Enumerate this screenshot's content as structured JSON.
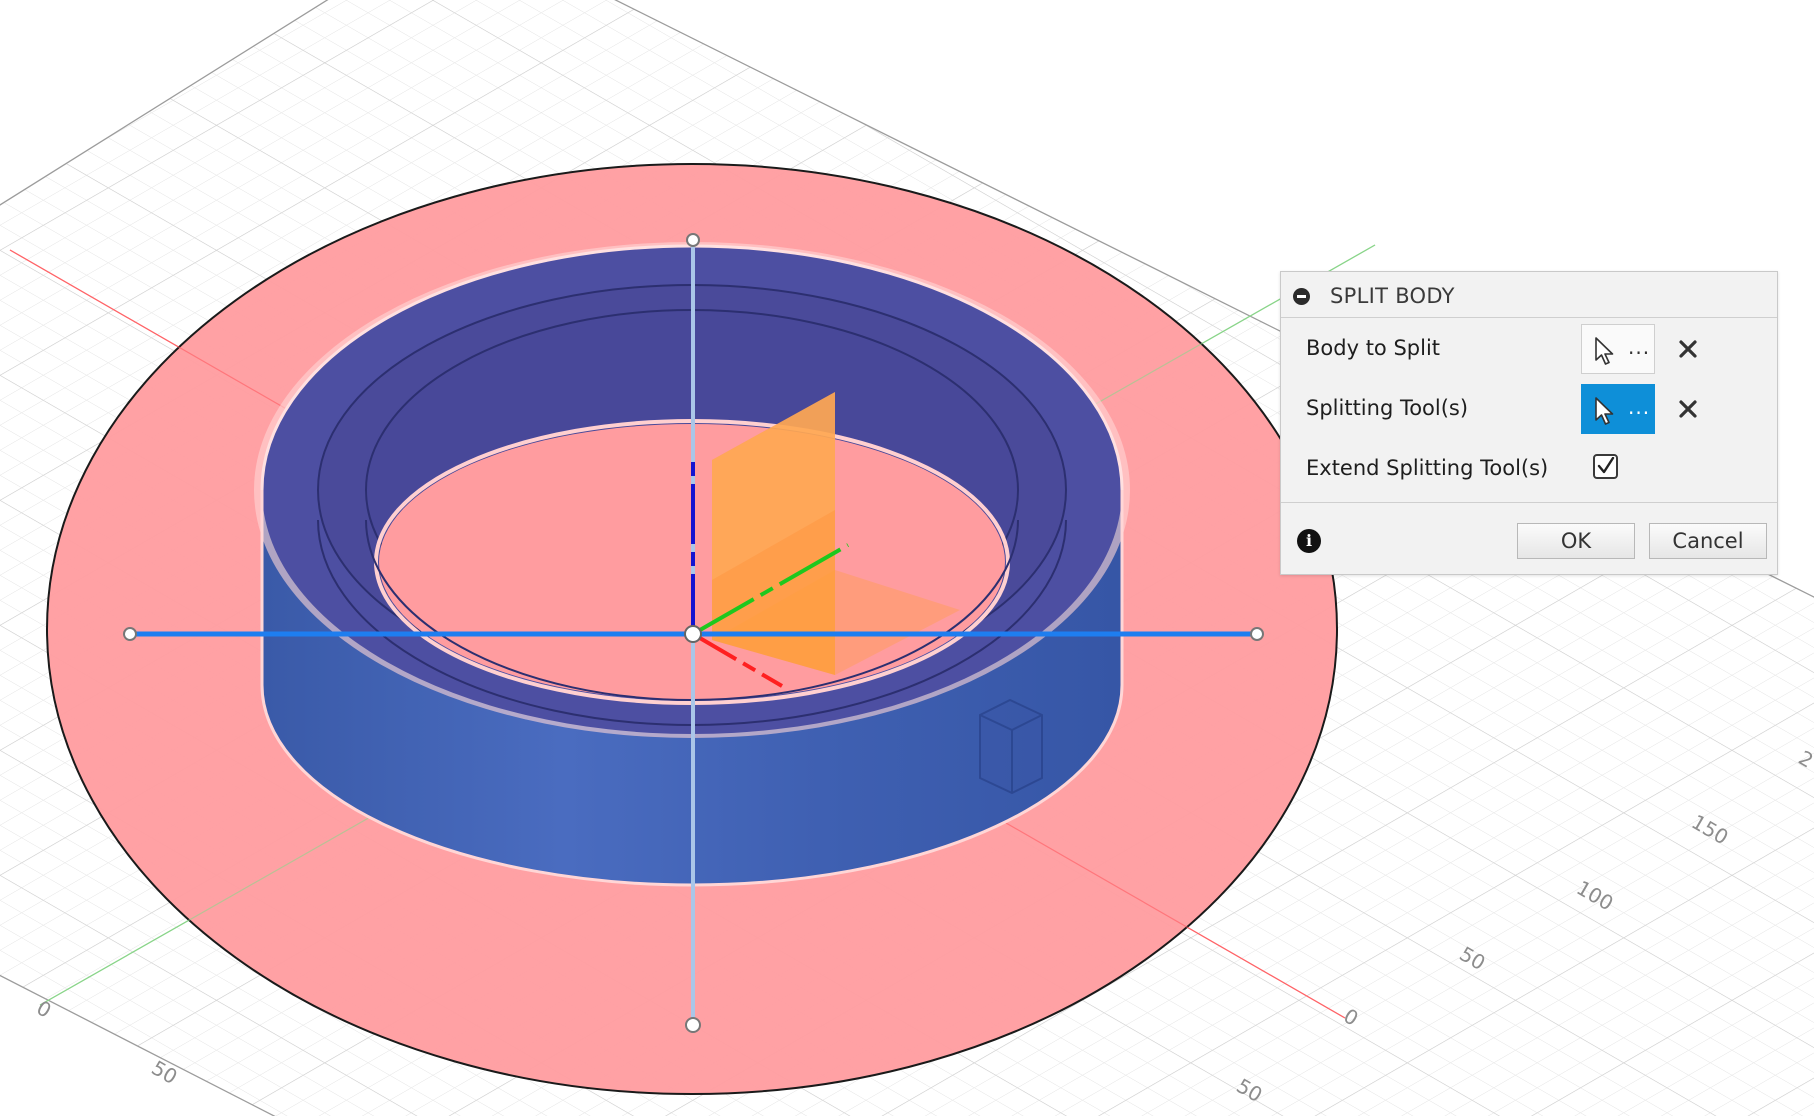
{
  "dialog": {
    "title": "SPLIT BODY",
    "rows": {
      "body_to_split": {
        "label": "Body to Split",
        "selector_text": "...",
        "active": false
      },
      "splitting_tools": {
        "label": "Splitting Tool(s)",
        "selector_text": "...",
        "active": true
      },
      "extend_splitting_tools": {
        "label": "Extend Splitting Tool(s)",
        "checked": true
      }
    },
    "buttons": {
      "ok": "OK",
      "cancel": "Cancel"
    }
  },
  "viewport": {
    "scene": "3D model: ring body on a red sketch plane with origin axes and workplane grid",
    "grid_tick_labels": {
      "right_axis": [
        "0",
        "50",
        "100",
        "150",
        "2"
      ],
      "left_axis": [
        "0",
        "50"
      ],
      "bottom_axis": [
        "50"
      ]
    },
    "colors": {
      "sketch_plane": "#ff9c9f",
      "body": "#3e5fb0",
      "selected_axis": "#1e7ef0",
      "splitting_plane": "#ff9f3c",
      "axis_x": "#ff2020",
      "axis_y": "#1ec81e",
      "axis_z": "#1414d0"
    }
  }
}
